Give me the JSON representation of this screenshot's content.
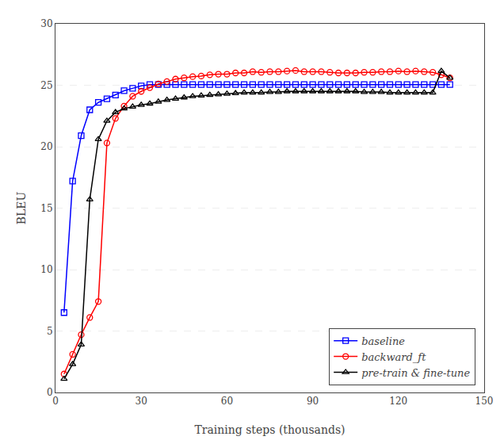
{
  "chart_data": {
    "type": "line",
    "xlabel": "Training steps (thousands)",
    "ylabel": "BLEU",
    "x": [
      3,
      6,
      9,
      12,
      15,
      18,
      21,
      24,
      27,
      30,
      33,
      36,
      39,
      42,
      45,
      48,
      51,
      54,
      57,
      60,
      63,
      66,
      69,
      72,
      75,
      78,
      81,
      84,
      87,
      90,
      93,
      96,
      99,
      102,
      105,
      108,
      111,
      114,
      117,
      120,
      123,
      126,
      129,
      132,
      135,
      138
    ],
    "series": [
      {
        "name": "baseline",
        "color": "#0000ff",
        "marker": "square",
        "values": [
          6.5,
          17.2,
          20.9,
          23.0,
          23.6,
          23.9,
          24.2,
          24.55,
          24.75,
          24.95,
          25.05,
          25.05,
          25.05,
          25.05,
          25.05,
          25.05,
          25.05,
          25.05,
          25.05,
          25.05,
          25.05,
          25.05,
          25.05,
          25.05,
          25.05,
          25.05,
          25.05,
          25.05,
          25.05,
          25.05,
          25.05,
          25.05,
          25.05,
          25.05,
          25.05,
          25.05,
          25.05,
          25.05,
          25.05,
          25.05,
          25.05,
          25.05,
          25.05,
          25.05,
          25.05,
          25.05
        ]
      },
      {
        "name": "backward_ft",
        "color": "#ff0000",
        "marker": "circle",
        "values": [
          1.5,
          3.1,
          4.7,
          6.1,
          7.4,
          20.3,
          22.3,
          23.3,
          24.1,
          24.5,
          24.8,
          25.1,
          25.3,
          25.5,
          25.6,
          25.7,
          25.75,
          25.85,
          25.9,
          25.9,
          26.0,
          26.0,
          26.1,
          26.05,
          26.1,
          26.1,
          26.15,
          26.2,
          26.1,
          26.1,
          26.1,
          26.05,
          26.0,
          26.0,
          26.0,
          26.05,
          26.05,
          26.1,
          26.1,
          26.15,
          26.1,
          26.15,
          26.1,
          26.05,
          25.85,
          25.6
        ]
      },
      {
        "name": "pre-train & fine-tune",
        "color": "#000000",
        "marker": "triangle-up",
        "values": [
          1.1,
          2.3,
          3.9,
          15.7,
          20.6,
          22.1,
          22.8,
          23.1,
          23.25,
          23.4,
          23.5,
          23.65,
          23.8,
          23.9,
          24.0,
          24.1,
          24.15,
          24.2,
          24.25,
          24.3,
          24.35,
          24.4,
          24.4,
          24.4,
          24.45,
          24.45,
          24.5,
          24.5,
          24.5,
          24.5,
          24.5,
          24.5,
          24.5,
          24.5,
          24.5,
          24.45,
          24.45,
          24.45,
          24.4,
          24.4,
          24.4,
          24.4,
          24.4,
          24.4,
          26.15,
          25.6
        ]
      }
    ],
    "xlim": [
      0,
      150
    ],
    "ylim": [
      0,
      30
    ],
    "xticks": [
      0,
      30,
      60,
      90,
      120,
      150
    ],
    "yticks": [
      0,
      5,
      10,
      15,
      20,
      25,
      30
    ],
    "grid": "y",
    "legend": "lower right"
  }
}
